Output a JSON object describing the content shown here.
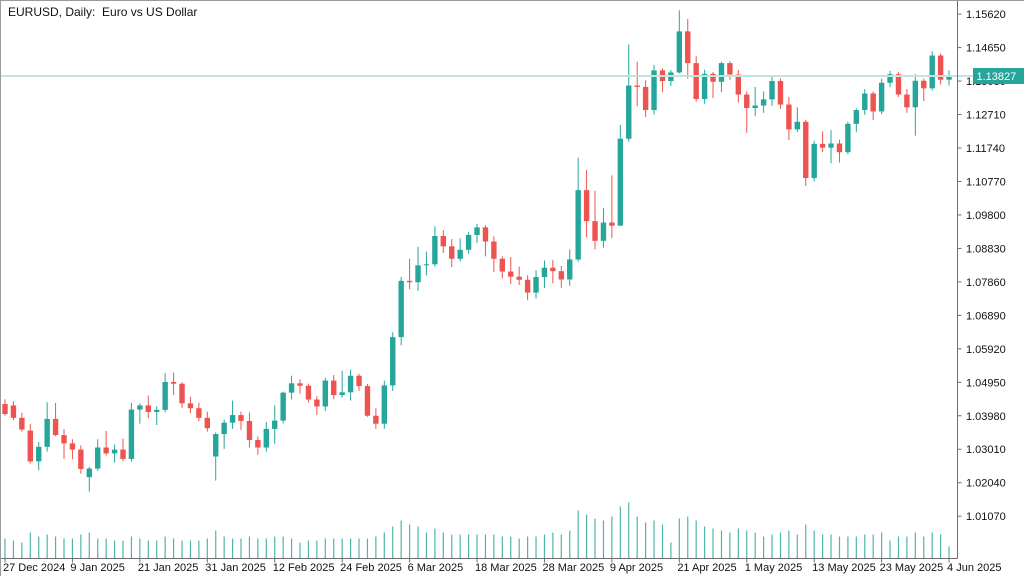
{
  "window": {
    "title": "EURUSD, Daily:  Euro vs US Dollar"
  },
  "colors": {
    "background": "#ffffff",
    "bull_candle": "#26a69a",
    "bear_candle": "#ef5350",
    "volume_bar": "#4db6ac",
    "current_price_line": "#bfe5df",
    "price_badge_bg": "#26a69a",
    "price_badge_text": "#ffffff",
    "axis_line": "#6e6e6e",
    "axis_text": "#111111",
    "window_border": "#9b9b9b"
  },
  "price_axis": {
    "tick_labels": [
      "1.15620",
      "1.14650",
      "1.13680",
      "1.12710",
      "1.11740",
      "1.10770",
      "1.09800",
      "1.08830",
      "1.07860",
      "1.06890",
      "1.05920",
      "1.04950",
      "1.03980",
      "1.03010",
      "1.02040",
      "1.01070"
    ]
  },
  "time_axis": {
    "tick_labels": [
      "27 Dec 2024",
      "9 Jan 2025",
      "21 Jan 2025",
      "31 Jan 2025",
      "12 Feb 2025",
      "24 Feb 2025",
      "6 Mar 2025",
      "18 Mar 2025",
      "28 Mar 2025",
      "9 Apr 2025",
      "21 Apr 2025",
      "1 May 2025",
      "13 May 2025",
      "23 May 2025",
      "4 Jun 2025"
    ],
    "label_every_n_candles": 8
  },
  "current_price": {
    "value": "1.13827",
    "price": 1.13827
  },
  "chart_data": {
    "type": "candlestick",
    "title": "EURUSD, Daily:  Euro vs US Dollar",
    "symbol": "EURUSD",
    "timeframe": "Daily",
    "description": "Euro vs US Dollar",
    "legend_position": "none",
    "grid": false,
    "y_axis_side": "right",
    "ylim": [
      0.9982,
      1.16
    ],
    "y_tick_step": 0.0097,
    "last_close_marker": 1.13827,
    "dates": [
      "27 Dec",
      "30 Dec",
      "31 Dec",
      "2 Jan",
      "3 Jan",
      "6 Jan",
      "7 Jan",
      "8 Jan",
      "9 Jan",
      "10 Jan",
      "13 Jan",
      "14 Jan",
      "15 Jan",
      "16 Jan",
      "17 Jan",
      "20 Jan",
      "21 Jan",
      "22 Jan",
      "23 Jan",
      "24 Jan",
      "27 Jan",
      "28 Jan",
      "29 Jan",
      "30 Jan",
      "31 Jan",
      "3 Feb",
      "4 Feb",
      "5 Feb",
      "6 Feb",
      "7 Feb",
      "10 Feb",
      "11 Feb",
      "12 Feb",
      "13 Feb",
      "14 Feb",
      "17 Feb",
      "18 Feb",
      "19 Feb",
      "20 Feb",
      "21 Feb",
      "24 Feb",
      "25 Feb",
      "26 Feb",
      "27 Feb",
      "28 Feb",
      "3 Mar",
      "4 Mar",
      "5 Mar",
      "6 Mar",
      "7 Mar",
      "10 Mar",
      "11 Mar",
      "12 Mar",
      "13 Mar",
      "14 Mar",
      "17 Mar",
      "18 Mar",
      "19 Mar",
      "20 Mar",
      "21 Mar",
      "24 Mar",
      "25 Mar",
      "26 Mar",
      "27 Mar",
      "28 Mar",
      "31 Mar",
      "1 Apr",
      "2 Apr",
      "3 Apr",
      "4 Apr",
      "7 Apr",
      "8 Apr",
      "9 Apr",
      "10 Apr",
      "11 Apr",
      "14 Apr",
      "15 Apr",
      "16 Apr",
      "17 Apr",
      "18 Apr",
      "21 Apr",
      "22 Apr",
      "23 Apr",
      "24 Apr",
      "25 Apr",
      "28 Apr",
      "29 Apr",
      "30 Apr",
      "1 May",
      "2 May",
      "5 May",
      "6 May",
      "7 May",
      "8 May",
      "9 May",
      "12 May",
      "13 May",
      "14 May",
      "15 May",
      "16 May",
      "19 May",
      "20 May",
      "21 May",
      "22 May",
      "23 May",
      "26 May",
      "27 May",
      "28 May",
      "29 May",
      "30 May",
      "2 Jun",
      "3 Jun",
      "4 Jun"
    ],
    "open": [
      1.0432,
      1.0428,
      1.0392,
      1.0355,
      1.0266,
      1.0308,
      1.0389,
      1.0342,
      1.0318,
      1.03,
      1.022,
      1.0245,
      1.0306,
      1.0289,
      1.03,
      1.0273,
      1.0416,
      1.0428,
      1.0409,
      1.0415,
      1.0496,
      1.0491,
      1.0434,
      1.042,
      1.0392,
      1.028,
      1.0345,
      1.0378,
      1.04,
      1.0383,
      1.0328,
      1.0306,
      1.036,
      1.0384,
      1.0465,
      1.0492,
      1.0485,
      1.0445,
      1.0425,
      1.05,
      1.0458,
      1.0466,
      1.0514,
      1.0484,
      1.0398,
      1.0375,
      1.0486,
      1.0626,
      1.0789,
      1.0785,
      1.0834,
      1.0837,
      1.0919,
      1.0889,
      1.0853,
      1.0879,
      1.0922,
      1.0944,
      1.0903,
      1.0853,
      1.0816,
      1.0801,
      1.0792,
      1.0755,
      1.08,
      1.0827,
      1.0817,
      1.0793,
      1.0851,
      1.1052,
      1.0962,
      1.0905,
      1.0958,
      1.0949,
      1.1201,
      1.1355,
      1.1351,
      1.1284,
      1.1399,
      1.1368,
      1.1393,
      1.1512,
      1.142,
      1.1316,
      1.1389,
      1.1366,
      1.142,
      1.1387,
      1.1329,
      1.129,
      1.1297,
      1.1315,
      1.1368,
      1.13,
      1.1228,
      1.125,
      1.1087,
      1.1186,
      1.1175,
      1.1187,
      1.1162,
      1.1244,
      1.1284,
      1.1332,
      1.128,
      1.1363,
      1.1388,
      1.1329,
      1.1292,
      1.1369,
      1.1347,
      1.1442,
      1.1372
    ],
    "high": [
      1.0446,
      1.044,
      1.0407,
      1.0374,
      1.0322,
      1.0437,
      1.0435,
      1.036,
      1.033,
      1.0312,
      1.025,
      1.033,
      1.0354,
      1.0315,
      1.0332,
      1.0435,
      1.0434,
      1.0457,
      1.0425,
      1.0521,
      1.0523,
      1.0495,
      1.0453,
      1.0436,
      1.041,
      1.035,
      1.0387,
      1.0442,
      1.041,
      1.0408,
      1.0338,
      1.038,
      1.0428,
      1.0468,
      1.0514,
      1.0504,
      1.0491,
      1.0455,
      1.0508,
      1.0516,
      1.0528,
      1.0532,
      1.052,
      1.049,
      1.042,
      1.05,
      1.064,
      1.08,
      1.0853,
      1.0888,
      1.0874,
      1.0947,
      1.0936,
      1.091,
      1.0912,
      1.093,
      1.0954,
      1.095,
      1.0918,
      1.086,
      1.0858,
      1.083,
      1.0805,
      1.082,
      1.0848,
      1.085,
      1.0832,
      1.088,
      1.1146,
      1.111,
      1.105,
      1.1,
      1.1095,
      1.1241,
      1.1474,
      1.1424,
      1.137,
      1.1415,
      1.1405,
      1.14,
      1.1573,
      1.1548,
      1.144,
      1.1401,
      1.1394,
      1.1424,
      1.1425,
      1.14,
      1.1338,
      1.1351,
      1.1338,
      1.138,
      1.1375,
      1.1322,
      1.1292,
      1.1256,
      1.1195,
      1.1222,
      1.1226,
      1.1198,
      1.125,
      1.1289,
      1.1345,
      1.1338,
      1.1375,
      1.1398,
      1.1395,
      1.1345,
      1.1388,
      1.1375,
      1.1454,
      1.1448,
      1.1399
    ],
    "low": [
      1.0398,
      1.0385,
      1.0352,
      1.026,
      1.024,
      1.0294,
      1.0339,
      1.0273,
      1.0272,
      1.023,
      1.0178,
      1.0238,
      1.0283,
      1.0262,
      1.0266,
      1.0265,
      1.0375,
      1.0391,
      1.0371,
      1.0408,
      1.0458,
      1.0421,
      1.0406,
      1.0382,
      1.0352,
      1.021,
      1.0302,
      1.036,
      1.0357,
      1.0306,
      1.0285,
      1.0294,
      1.0317,
      1.0376,
      1.0445,
      1.0462,
      1.0436,
      1.04,
      1.0412,
      1.0446,
      1.0451,
      1.0442,
      1.047,
      1.0395,
      1.036,
      1.036,
      1.047,
      1.0602,
      1.0765,
      1.076,
      1.0805,
      1.083,
      1.087,
      1.0829,
      1.0845,
      1.0868,
      1.0899,
      1.086,
      1.0815,
      1.0796,
      1.078,
      1.0777,
      1.0733,
      1.0738,
      1.0768,
      1.0782,
      1.0769,
      1.0775,
      1.0845,
      1.0915,
      1.088,
      1.0885,
      1.0913,
      1.0948,
      1.1192,
      1.1295,
      1.1264,
      1.1271,
      1.1336,
      1.1354,
      1.139,
      1.1375,
      1.1308,
      1.1302,
      1.1319,
      1.1336,
      1.1372,
      1.1306,
      1.1218,
      1.1266,
      1.1276,
      1.1296,
      1.1288,
      1.1197,
      1.122,
      1.1064,
      1.1077,
      1.1162,
      1.113,
      1.1132,
      1.1156,
      1.122,
      1.127,
      1.1255,
      1.1272,
      1.135,
      1.1322,
      1.1276,
      1.121,
      1.131,
      1.134,
      1.1358,
      1.1355
    ],
    "close": [
      1.0403,
      1.0392,
      1.0358,
      1.0266,
      1.0308,
      1.0389,
      1.0342,
      1.0318,
      1.03,
      1.0244,
      1.0245,
      1.0306,
      1.0289,
      1.03,
      1.0273,
      1.0416,
      1.0428,
      1.0409,
      1.0415,
      1.0496,
      1.0491,
      1.0434,
      1.042,
      1.0392,
      1.0362,
      1.0345,
      1.0378,
      1.04,
      1.0383,
      1.0328,
      1.0306,
      1.036,
      1.0384,
      1.0465,
      1.0492,
      1.0485,
      1.0445,
      1.0425,
      1.05,
      1.0458,
      1.0466,
      1.0514,
      1.0484,
      1.0398,
      1.0375,
      1.0486,
      1.0626,
      1.0789,
      1.0785,
      1.0834,
      1.0837,
      1.0919,
      1.0889,
      1.0853,
      1.0879,
      1.0922,
      1.0944,
      1.0903,
      1.0853,
      1.0816,
      1.0801,
      1.0792,
      1.0755,
      1.08,
      1.0827,
      1.0817,
      1.0793,
      1.0851,
      1.1052,
      1.0962,
      1.0905,
      1.0958,
      1.0949,
      1.1201,
      1.1355,
      1.1351,
      1.1284,
      1.1399,
      1.1368,
      1.1393,
      1.1512,
      1.142,
      1.1316,
      1.1389,
      1.1366,
      1.142,
      1.1387,
      1.1329,
      1.129,
      1.1297,
      1.1315,
      1.1368,
      1.13,
      1.1228,
      1.125,
      1.1087,
      1.1186,
      1.1175,
      1.1187,
      1.1162,
      1.1244,
      1.1284,
      1.1332,
      1.128,
      1.1363,
      1.1388,
      1.1329,
      1.1292,
      1.1369,
      1.1347,
      1.1442,
      1.1372,
      1.13827
    ],
    "volume": [
      10,
      9,
      8,
      13,
      11,
      12,
      11,
      10,
      10,
      12,
      13,
      10,
      10,
      9,
      9,
      11,
      10,
      9,
      9,
      11,
      10,
      9,
      9,
      9,
      10,
      14,
      11,
      10,
      10,
      11,
      10,
      10,
      11,
      11,
      10,
      8,
      9,
      9,
      10,
      10,
      10,
      10,
      10,
      10,
      11,
      13,
      16,
      19,
      17,
      16,
      13,
      15,
      13,
      12,
      12,
      12,
      12,
      12,
      12,
      11,
      11,
      10,
      11,
      11,
      12,
      13,
      12,
      14,
      24,
      22,
      20,
      19,
      21,
      26,
      28,
      21,
      18,
      19,
      17,
      8,
      20,
      21,
      19,
      16,
      15,
      14,
      13,
      15,
      14,
      13,
      11,
      12,
      13,
      14,
      12,
      17,
      14,
      12,
      12,
      11,
      11,
      11,
      12,
      12,
      13,
      9,
      11,
      11,
      13,
      11,
      13,
      12,
      6
    ]
  }
}
